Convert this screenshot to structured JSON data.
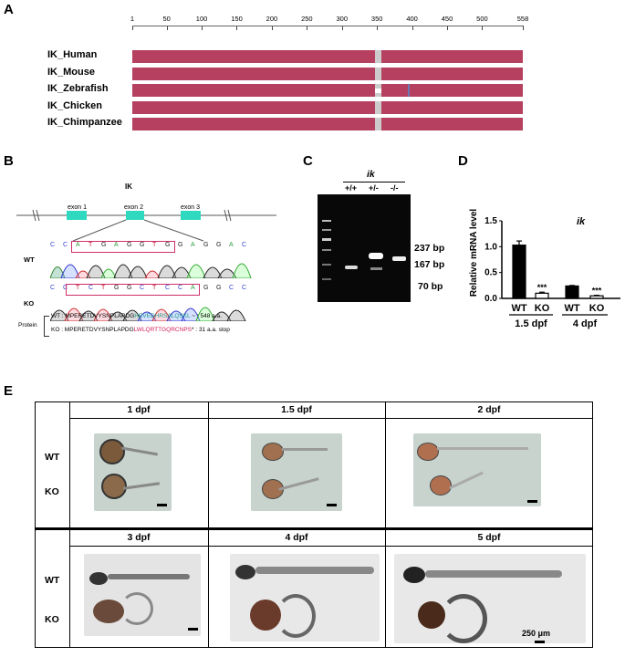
{
  "panels": {
    "a": "A",
    "b": "B",
    "c": "C",
    "d": "D",
    "e": "E"
  },
  "panel_a": {
    "ruler_ticks": [
      "1",
      "50",
      "100",
      "150",
      "200",
      "250",
      "300",
      "350",
      "400",
      "450",
      "500",
      "558"
    ],
    "species": [
      "IK_Human",
      "IK_Mouse",
      "IK_Zebrafish",
      "IK_Chicken",
      "IK_Chimpanzee"
    ],
    "bar_color": "#b5405f",
    "gap_color": "#cccccc"
  },
  "panel_b": {
    "gene": "IK",
    "exons": [
      "exon 1",
      "exon 2",
      "exon 3"
    ],
    "wt_label": "WT",
    "ko_label": "KO",
    "wt_bases": [
      "C",
      "C",
      "A",
      "T",
      "G",
      "A",
      "G",
      "G",
      "T",
      "G",
      "G",
      "A",
      "G",
      "G",
      "A",
      "C"
    ],
    "ko_bases": [
      "C",
      "C",
      "T",
      "C",
      "T",
      "G",
      "G",
      "C",
      "T",
      "C",
      "C",
      "A",
      "G",
      "G",
      "C",
      "C"
    ],
    "protein_label": "Protein",
    "wt_protein_prefix": "WT : MPERETDVYSNPLAPDG",
    "wt_protein_colored": "HEVEDHRSALQSKL",
    "wt_protein_suffix": "~ : 548 a.a.",
    "ko_protein_prefix": "KO : MPERETDVYSNPLAPDG",
    "ko_protein_colored": "LWLQRTTGQRCNPS",
    "ko_protein_suffix": "* : 31 a.a. stop",
    "wt_color": "#1a9a8a",
    "ko_color": "#d0205a"
  },
  "panel_c": {
    "gene": "ik",
    "lanes": [
      "+/+",
      "+/-",
      "-/-"
    ],
    "bands": [
      "237 bp",
      "167 bp",
      "70 bp"
    ]
  },
  "panel_d": {
    "chart_data": {
      "type": "bar",
      "title": "ik",
      "ylabel": "Relative mRNA level",
      "ylim": [
        0,
        1.5
      ],
      "yticks": [
        "0.0",
        "0.5",
        "1.0",
        "1.5"
      ],
      "categories": [
        "WT",
        "KO",
        "WT",
        "KO"
      ],
      "groups": [
        "1.5 dpf",
        "4 dpf"
      ],
      "values": [
        1.03,
        0.1,
        0.24,
        0.05
      ],
      "errors": [
        0.08,
        0.02,
        0.01,
        0.01
      ],
      "fills": [
        "#000000",
        "#ffffff",
        "#000000",
        "#ffffff"
      ],
      "significance": [
        "",
        "***",
        "",
        "***"
      ]
    }
  },
  "panel_e": {
    "stages_top": [
      "1 dpf",
      "1.5 dpf",
      "2 dpf"
    ],
    "stages_bottom": [
      "3 dpf",
      "4 dpf",
      "5 dpf"
    ],
    "row_wt": "WT",
    "row_ko": "KO",
    "scale": "250 μm"
  }
}
